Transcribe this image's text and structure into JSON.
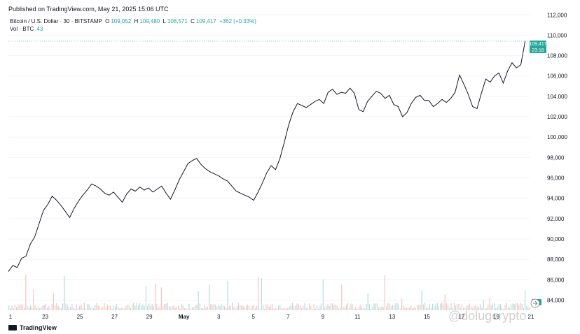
{
  "header": {
    "published": "Published on TradingView.com, May 21, 2025 15:06 UTC",
    "symbol": "Bitcoin / U.S. Dollar · 30 · BITSTAMP",
    "o_label": "O",
    "o_value": "109,052",
    "h_label": "H",
    "h_value": "109,480",
    "l_label": "L",
    "l_value": "108,571",
    "c_label": "C",
    "c_value": "109,417",
    "change": "+362 (+0.33%)",
    "vol_label": "Vol · BTC",
    "vol_value": "43"
  },
  "price_tag": {
    "price": "109,417",
    "countdown": "23:18"
  },
  "vol_tag": "43",
  "brand": "TradingView",
  "watermark": "@dolugcrypto",
  "colors": {
    "up": "#26a69a",
    "down": "#ef5350",
    "last_line": "#26a69a"
  },
  "chart_data": {
    "type": "line",
    "title": "Bitcoin / U.S. Dollar · 30 · BITSTAMP",
    "xlabel": "",
    "ylabel": "",
    "y_ticks": [
      "112,000",
      "110,000",
      "108,000",
      "106,000",
      "104,000",
      "102,000",
      "100,000",
      "98,000",
      "96,000",
      "94,000",
      "92,000",
      "90,000",
      "88,000",
      "86,000",
      "84,000"
    ],
    "x_ticks": [
      "1",
      "23",
      "25",
      "27",
      "29",
      "May",
      "3",
      "5",
      "7",
      "9",
      "11",
      "13",
      "15",
      "17",
      "19",
      "21"
    ],
    "ylim": [
      83000,
      112500
    ],
    "last_price": 109417,
    "series": [
      {
        "values": [
          [
            0.0,
            86800
          ],
          [
            0.5,
            87400
          ],
          [
            1.0,
            87200
          ],
          [
            1.5,
            88100
          ],
          [
            2.0,
            88300
          ],
          [
            2.5,
            89500
          ],
          [
            3.0,
            90200
          ],
          [
            3.5,
            91500
          ],
          [
            4.0,
            92800
          ],
          [
            4.5,
            93400
          ],
          [
            5.0,
            94200
          ],
          [
            5.5,
            93800
          ],
          [
            6.0,
            93300
          ],
          [
            6.5,
            92700
          ],
          [
            7.0,
            92100
          ],
          [
            7.5,
            93000
          ],
          [
            8.0,
            93700
          ],
          [
            8.5,
            94300
          ],
          [
            9.0,
            94800
          ],
          [
            9.5,
            95400
          ],
          [
            10.0,
            95200
          ],
          [
            10.5,
            94900
          ],
          [
            11.0,
            94500
          ],
          [
            11.5,
            94300
          ],
          [
            12.0,
            94600
          ],
          [
            12.5,
            94100
          ],
          [
            13.0,
            93600
          ],
          [
            13.5,
            94400
          ],
          [
            14.0,
            94900
          ],
          [
            14.5,
            94700
          ],
          [
            15.0,
            95100
          ],
          [
            15.5,
            94800
          ],
          [
            16.0,
            95000
          ],
          [
            16.5,
            94600
          ],
          [
            17.0,
            94900
          ],
          [
            17.5,
            95200
          ],
          [
            18.0,
            94500
          ],
          [
            18.5,
            93900
          ],
          [
            19.0,
            94800
          ],
          [
            19.5,
            95800
          ],
          [
            20.0,
            96600
          ],
          [
            20.5,
            97400
          ],
          [
            21.0,
            97700
          ],
          [
            21.5,
            97900
          ],
          [
            22.0,
            97300
          ],
          [
            22.5,
            96900
          ],
          [
            23.0,
            96600
          ],
          [
            23.5,
            96400
          ],
          [
            24.0,
            96200
          ],
          [
            24.5,
            95900
          ],
          [
            25.0,
            95700
          ],
          [
            25.5,
            95200
          ],
          [
            26.0,
            94700
          ],
          [
            26.5,
            94500
          ],
          [
            27.0,
            94300
          ],
          [
            27.5,
            94100
          ],
          [
            28.0,
            93800
          ],
          [
            28.5,
            94600
          ],
          [
            29.0,
            95500
          ],
          [
            29.5,
            96500
          ],
          [
            30.0,
            97200
          ],
          [
            30.5,
            96800
          ],
          [
            31.0,
            97900
          ],
          [
            31.5,
            99500
          ],
          [
            32.0,
            101200
          ],
          [
            32.5,
            102500
          ],
          [
            33.0,
            103300
          ],
          [
            33.5,
            103100
          ],
          [
            34.0,
            102900
          ],
          [
            34.5,
            103200
          ],
          [
            35.0,
            103500
          ],
          [
            35.5,
            103700
          ],
          [
            36.0,
            103300
          ],
          [
            36.5,
            104400
          ],
          [
            37.0,
            104700
          ],
          [
            37.5,
            104200
          ],
          [
            38.0,
            104400
          ],
          [
            38.5,
            104300
          ],
          [
            39.0,
            104800
          ],
          [
            39.5,
            104300
          ],
          [
            40.0,
            102700
          ],
          [
            40.5,
            102500
          ],
          [
            41.0,
            103500
          ],
          [
            41.5,
            104000
          ],
          [
            42.0,
            104500
          ],
          [
            42.5,
            104300
          ],
          [
            43.0,
            103800
          ],
          [
            43.5,
            104100
          ],
          [
            44.0,
            103200
          ],
          [
            44.5,
            103000
          ],
          [
            45.0,
            102000
          ],
          [
            45.5,
            102400
          ],
          [
            46.0,
            103300
          ],
          [
            46.5,
            103900
          ],
          [
            47.0,
            104100
          ],
          [
            47.5,
            103600
          ],
          [
            48.0,
            103600
          ],
          [
            48.5,
            103000
          ],
          [
            49.0,
            103300
          ],
          [
            49.5,
            103700
          ],
          [
            50.0,
            103400
          ],
          [
            50.5,
            103800
          ],
          [
            51.0,
            104400
          ],
          [
            51.5,
            106100
          ],
          [
            52.0,
            105200
          ],
          [
            52.5,
            104200
          ],
          [
            53.0,
            103000
          ],
          [
            53.5,
            102800
          ],
          [
            54.0,
            104300
          ],
          [
            54.5,
            105700
          ],
          [
            55.0,
            105400
          ],
          [
            55.5,
            106000
          ],
          [
            56.0,
            106300
          ],
          [
            56.5,
            105300
          ],
          [
            57.0,
            106500
          ],
          [
            57.5,
            107300
          ],
          [
            58.0,
            106800
          ],
          [
            58.5,
            107100
          ],
          [
            59.0,
            109417
          ]
        ]
      }
    ]
  }
}
